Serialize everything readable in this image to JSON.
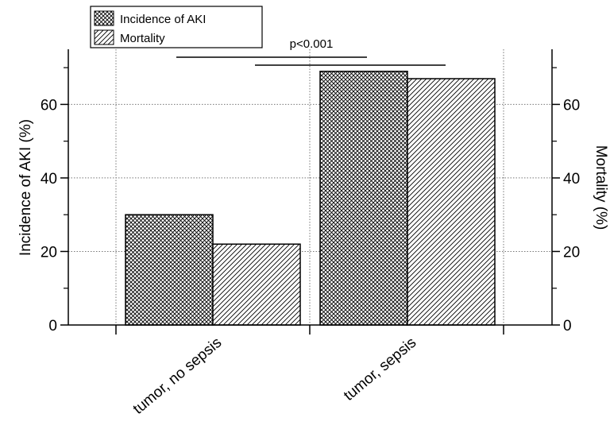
{
  "chart_data": {
    "type": "bar",
    "categories": [
      "tumor, no sepsis",
      "tumor, sepsis"
    ],
    "series": [
      {
        "name": "Incidence of AKI",
        "axis": "left",
        "pattern": "crosshatch",
        "values": [
          30,
          69
        ]
      },
      {
        "name": "Mortality",
        "axis": "right",
        "pattern": "diagonal",
        "values": [
          22,
          67
        ]
      }
    ],
    "ylabel_left": "Incidence of AKI (%)",
    "ylabel_right": "Mortality (%)",
    "ylim": [
      0,
      75
    ],
    "yticks": [
      0,
      20,
      40,
      60
    ],
    "grid": true,
    "legend_position": "top-left",
    "annotation": "p<0.001",
    "colors": {
      "bar_stroke": "#000000",
      "pattern_line": "#000000",
      "bar_fill": "#ffffff",
      "grid": "#777777"
    }
  }
}
